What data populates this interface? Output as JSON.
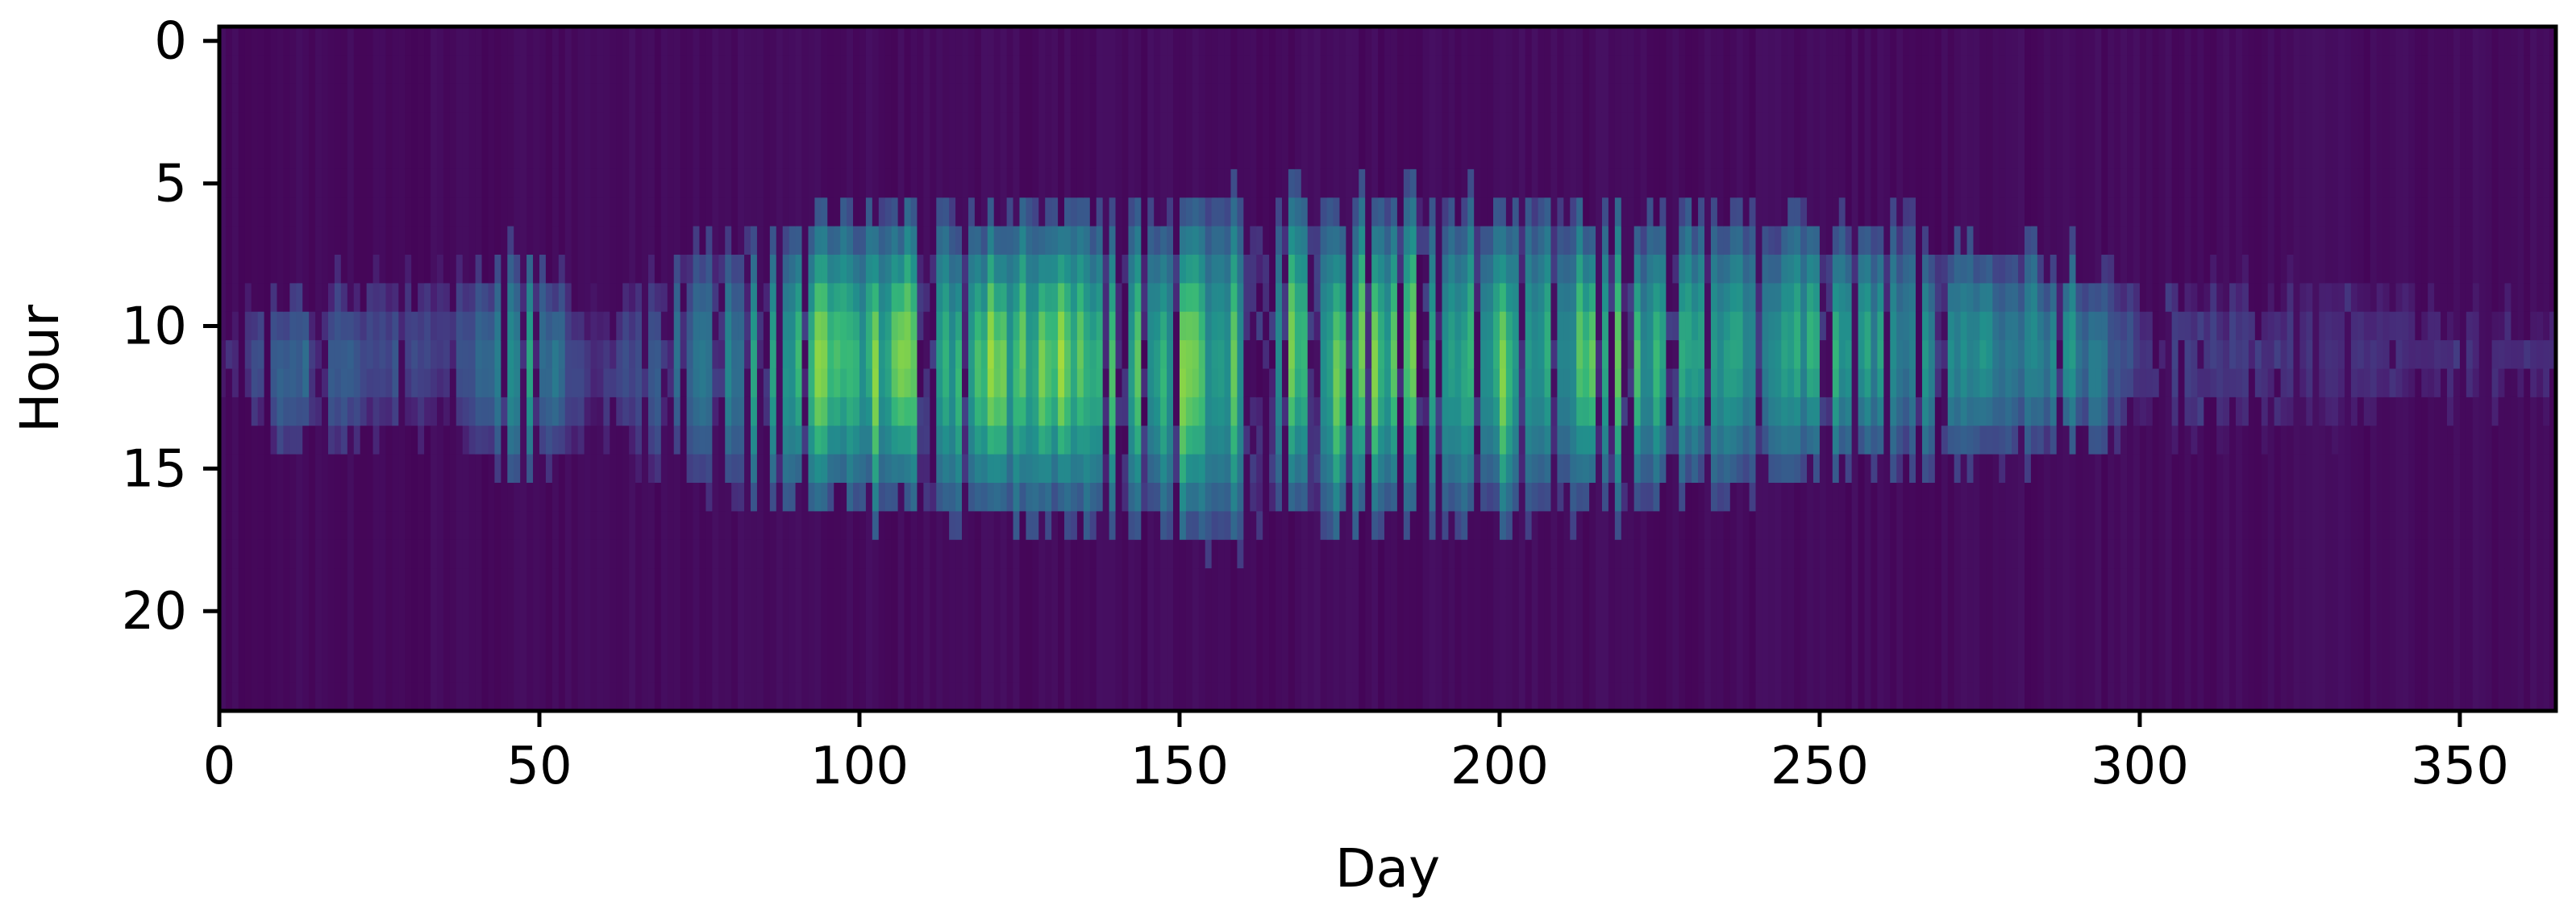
{
  "chart_data": {
    "type": "heatmap",
    "title": "",
    "xlabel": "Day",
    "ylabel": "Hour",
    "xlim": [
      0,
      365
    ],
    "ylim": [
      23.5,
      -0.5
    ],
    "x_ticks": [
      0,
      50,
      100,
      150,
      200,
      250,
      300,
      350
    ],
    "y_ticks": [
      0,
      5,
      10,
      15,
      20
    ],
    "colormap": "viridis",
    "grid": false,
    "days": 365,
    "hours": 24,
    "daytime_profile": [
      {
        "day": 0,
        "start": 9.5,
        "end": 12.5,
        "peak": 0.08
      },
      {
        "day": 10,
        "start": 8.5,
        "end": 14.5,
        "peak": 0.5
      },
      {
        "day": 35,
        "start": 8.5,
        "end": 13.5,
        "peak": 0.3
      },
      {
        "day": 48,
        "start": 7.5,
        "end": 15.5,
        "peak": 0.8
      },
      {
        "day": 58,
        "start": 9.5,
        "end": 13.5,
        "peak": 0.2
      },
      {
        "day": 75,
        "start": 7.0,
        "end": 15.5,
        "peak": 0.55
      },
      {
        "day": 95,
        "start": 6.0,
        "end": 16.5,
        "peak": 0.92
      },
      {
        "day": 135,
        "start": 6.0,
        "end": 17.0,
        "peak": 0.95
      },
      {
        "day": 160,
        "start": 5.5,
        "end": 17.5,
        "peak": 0.85
      },
      {
        "day": 195,
        "start": 5.5,
        "end": 17.0,
        "peak": 0.88
      },
      {
        "day": 230,
        "start": 6.0,
        "end": 16.0,
        "peak": 0.8
      },
      {
        "day": 265,
        "start": 6.5,
        "end": 15.0,
        "peak": 0.72
      },
      {
        "day": 290,
        "start": 7.5,
        "end": 14.5,
        "peak": 0.68
      },
      {
        "day": 300,
        "start": 8.5,
        "end": 13.5,
        "peak": 0.28
      },
      {
        "day": 330,
        "start": 8.5,
        "end": 13.5,
        "peak": 0.22
      },
      {
        "day": 365,
        "start": 9.5,
        "end": 12.5,
        "peak": 0.18
      }
    ]
  }
}
